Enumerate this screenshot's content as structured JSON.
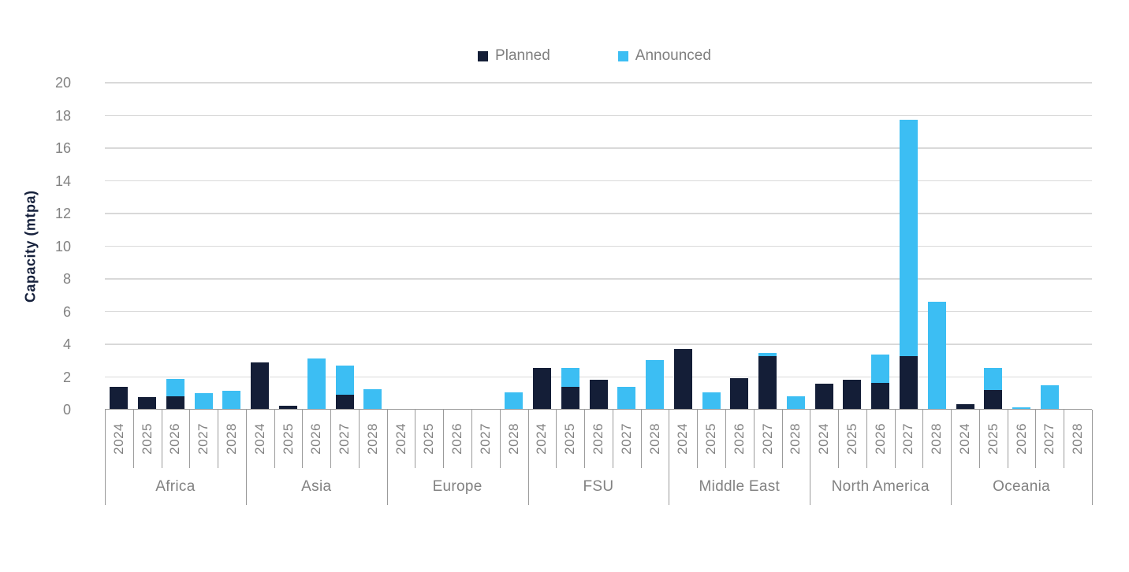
{
  "legend": {
    "items": [
      {
        "label": "Planned",
        "color": "#141e37"
      },
      {
        "label": "Announced",
        "color": "#3cbef3"
      }
    ]
  },
  "chart_data": {
    "type": "bar",
    "stacked": true,
    "title": "",
    "xlabel": "",
    "ylabel": "Capacity (mtpa)",
    "ylim": [
      0,
      20
    ],
    "y_tick_step": 2,
    "grid": true,
    "legend_position": "top-center",
    "years": [
      "2024",
      "2025",
      "2026",
      "2027",
      "2028"
    ],
    "series_names": [
      "Planned",
      "Announced"
    ],
    "colors": {
      "planned": "#141e37",
      "announced": "#3cbef3"
    },
    "regions": [
      {
        "name": "Africa",
        "planned": [
          1.35,
          0.7,
          0.75,
          0,
          0
        ],
        "announced": [
          0,
          0,
          1.1,
          0.95,
          1.1
        ]
      },
      {
        "name": "Asia",
        "planned": [
          2.85,
          0.2,
          0,
          0.85,
          0
        ],
        "announced": [
          0,
          0,
          3.1,
          1.8,
          1.2
        ]
      },
      {
        "name": "Europe",
        "planned": [
          0,
          0,
          0,
          0,
          0
        ],
        "announced": [
          0,
          0,
          0,
          0,
          1.0
        ]
      },
      {
        "name": "FSU",
        "planned": [
          2.5,
          1.35,
          1.8,
          0,
          0
        ],
        "announced": [
          0,
          1.15,
          0,
          1.35,
          3.0
        ]
      },
      {
        "name": "Middle East",
        "planned": [
          3.65,
          0,
          1.9,
          3.25,
          0
        ],
        "announced": [
          0,
          1.0,
          0,
          0.15,
          0.75
        ]
      },
      {
        "name": "North America",
        "planned": [
          1.55,
          1.8,
          1.6,
          3.25,
          0
        ],
        "announced": [
          0,
          0,
          1.75,
          14.45,
          6.55
        ]
      },
      {
        "name": "Oceania",
        "planned": [
          0.3,
          1.15,
          0,
          0,
          0
        ],
        "announced": [
          0,
          1.35,
          0.1,
          1.45,
          0
        ]
      }
    ]
  }
}
